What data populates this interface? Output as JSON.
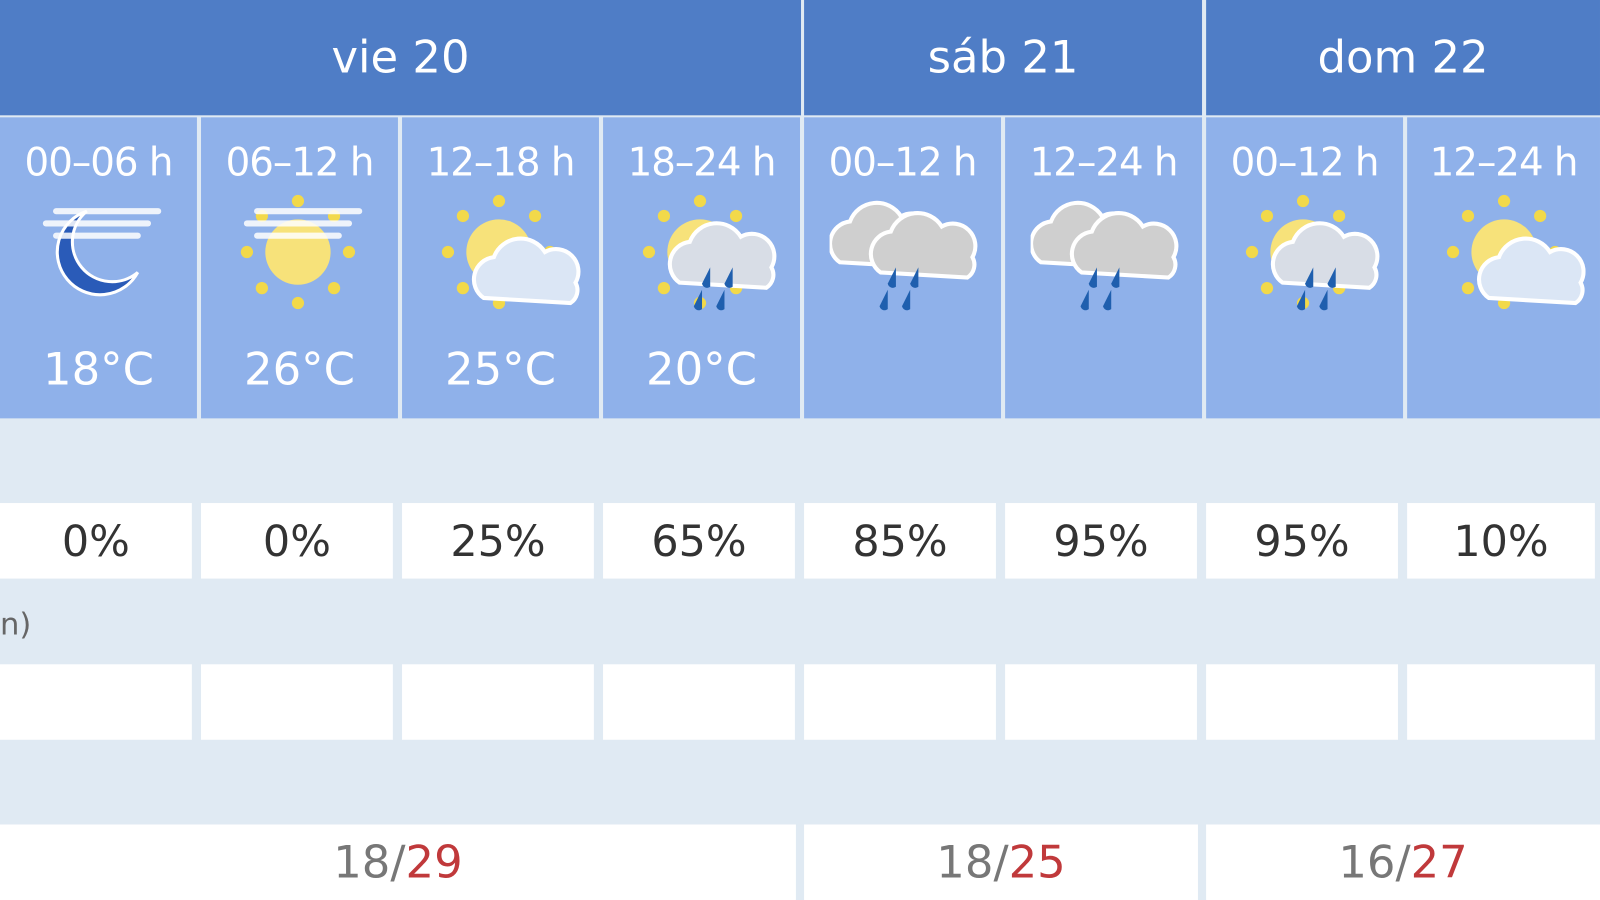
{
  "days": [
    {
      "label": "vie 20",
      "min": "18",
      "max": "29"
    },
    {
      "label": "sáb 21",
      "min": "18",
      "max": "25"
    },
    {
      "label": "dom 22",
      "min": "16",
      "max": "27"
    }
  ],
  "periods": [
    {
      "label": "00–06 h",
      "icon": "moon-haze",
      "temp": "18°C",
      "precip": "0%"
    },
    {
      "label": "06–12 h",
      "icon": "sun-haze",
      "temp": "26°C",
      "precip": "0%"
    },
    {
      "label": "12–18 h",
      "icon": "sun-cloud",
      "temp": "25°C",
      "precip": "25%"
    },
    {
      "label": "18–24 h",
      "icon": "sun-cloud-rain",
      "temp": "20°C",
      "precip": "65%"
    },
    {
      "label": "00–12 h",
      "icon": "cloud-rain",
      "temp": "",
      "precip": "85%"
    },
    {
      "label": "12–24 h",
      "icon": "cloud-rain",
      "temp": "",
      "precip": "95%"
    },
    {
      "label": "00–12 h",
      "icon": "sun-cloud-rain",
      "temp": "",
      "precip": "95%"
    },
    {
      "label": "12–24 h",
      "icon": "sun-cloud",
      "temp": "",
      "precip": "10%"
    }
  ],
  "row_label_fragment": "n)",
  "separator": " / ",
  "colors": {
    "header": "#4f7dc6",
    "period": "#8fb1ea",
    "row": "#e0eaf3",
    "max": "#c0393b"
  }
}
